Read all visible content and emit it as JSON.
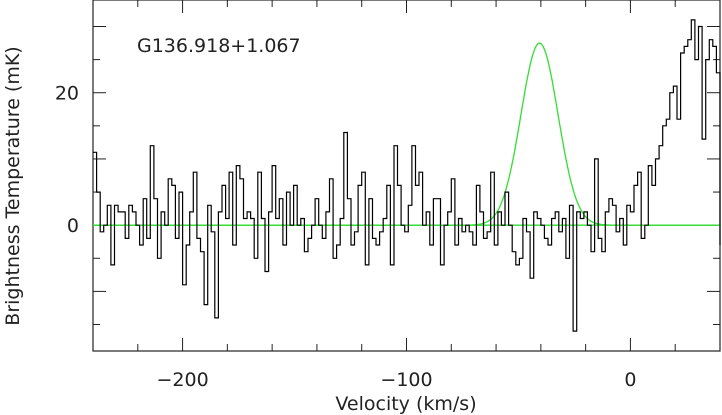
{
  "chart_data": {
    "type": "line",
    "title": "",
    "annotation": "G136.918+1.067",
    "xlabel": "Velocity (km/s)",
    "ylabel": "Brightness Temperature (mK)",
    "xlim": [
      -240,
      40
    ],
    "ylim": [
      -19,
      34
    ],
    "x_ticks": [
      -200,
      -100,
      0
    ],
    "x_tick_labels": [
      "−200",
      "−100",
      "0"
    ],
    "y_ticks": [
      0,
      20
    ],
    "y_tick_labels": [
      "0",
      "20"
    ],
    "grid": false,
    "colors": {
      "spectrum": "#000000",
      "fit": "#33dd33",
      "baseline": "#33dd33"
    },
    "series": [
      {
        "kind": "step",
        "x_start": -240,
        "x_step": 1.6,
        "values": [
          11,
          5,
          -1,
          0,
          3,
          -6,
          3,
          2,
          2,
          -2,
          3,
          2,
          0,
          -3,
          4,
          -2,
          12,
          4,
          -5,
          2,
          0,
          7,
          6,
          -2,
          5,
          -9,
          -3,
          2,
          8,
          -2,
          -4,
          -12,
          3,
          -1,
          -14,
          2,
          6,
          1,
          8,
          -3,
          9,
          7,
          1,
          2,
          1,
          -5,
          8,
          1,
          -7,
          2,
          9,
          1,
          4,
          -3,
          5,
          0,
          6,
          0,
          1,
          -4,
          -2,
          0,
          4,
          0,
          -2,
          2,
          7,
          -5,
          -3,
          1,
          14,
          4,
          -3,
          -1,
          6,
          8,
          -6,
          4,
          -2,
          -3,
          -1,
          1,
          6,
          -6,
          12,
          6,
          0,
          -1,
          3,
          12,
          6,
          8,
          0,
          2,
          -3,
          4,
          4,
          -6,
          0,
          2,
          7,
          -3,
          1,
          -1,
          0,
          -1,
          -3,
          6,
          2,
          -2,
          -1,
          8,
          -3,
          2,
          0,
          5,
          0,
          -4,
          -6,
          -5,
          1,
          -1,
          -8,
          2,
          1,
          0,
          -2,
          -3,
          1,
          2,
          -1,
          1,
          -5,
          3,
          -16,
          2,
          1,
          2,
          0,
          -4,
          10,
          -2,
          -4,
          2,
          4,
          3,
          -1,
          1,
          -3,
          3,
          2,
          6,
          8,
          -2,
          0,
          9,
          6,
          10,
          12,
          15,
          16,
          20,
          21,
          16,
          26,
          27,
          28,
          31,
          25,
          30,
          13,
          25,
          28,
          27,
          23,
          22,
          16,
          12,
          16,
          8,
          6,
          10,
          5,
          6,
          7,
          -2,
          5,
          4,
          2,
          0,
          -3,
          1,
          4,
          6,
          2,
          0,
          2,
          3,
          0,
          1,
          5,
          2,
          1,
          6,
          2,
          10,
          4,
          0,
          0,
          -1,
          0,
          -2,
          0,
          1,
          -2,
          2,
          0,
          -1,
          0,
          4,
          2,
          2,
          0,
          1,
          0,
          4,
          5,
          3,
          0,
          -3,
          -1,
          4,
          9
        ]
      },
      {
        "kind": "gaussian_fit",
        "amplitude": 27.5,
        "center": -40.6,
        "sigma": 8.3,
        "x_range": [
          -240,
          40
        ]
      },
      {
        "kind": "baseline",
        "y": 0
      }
    ]
  }
}
